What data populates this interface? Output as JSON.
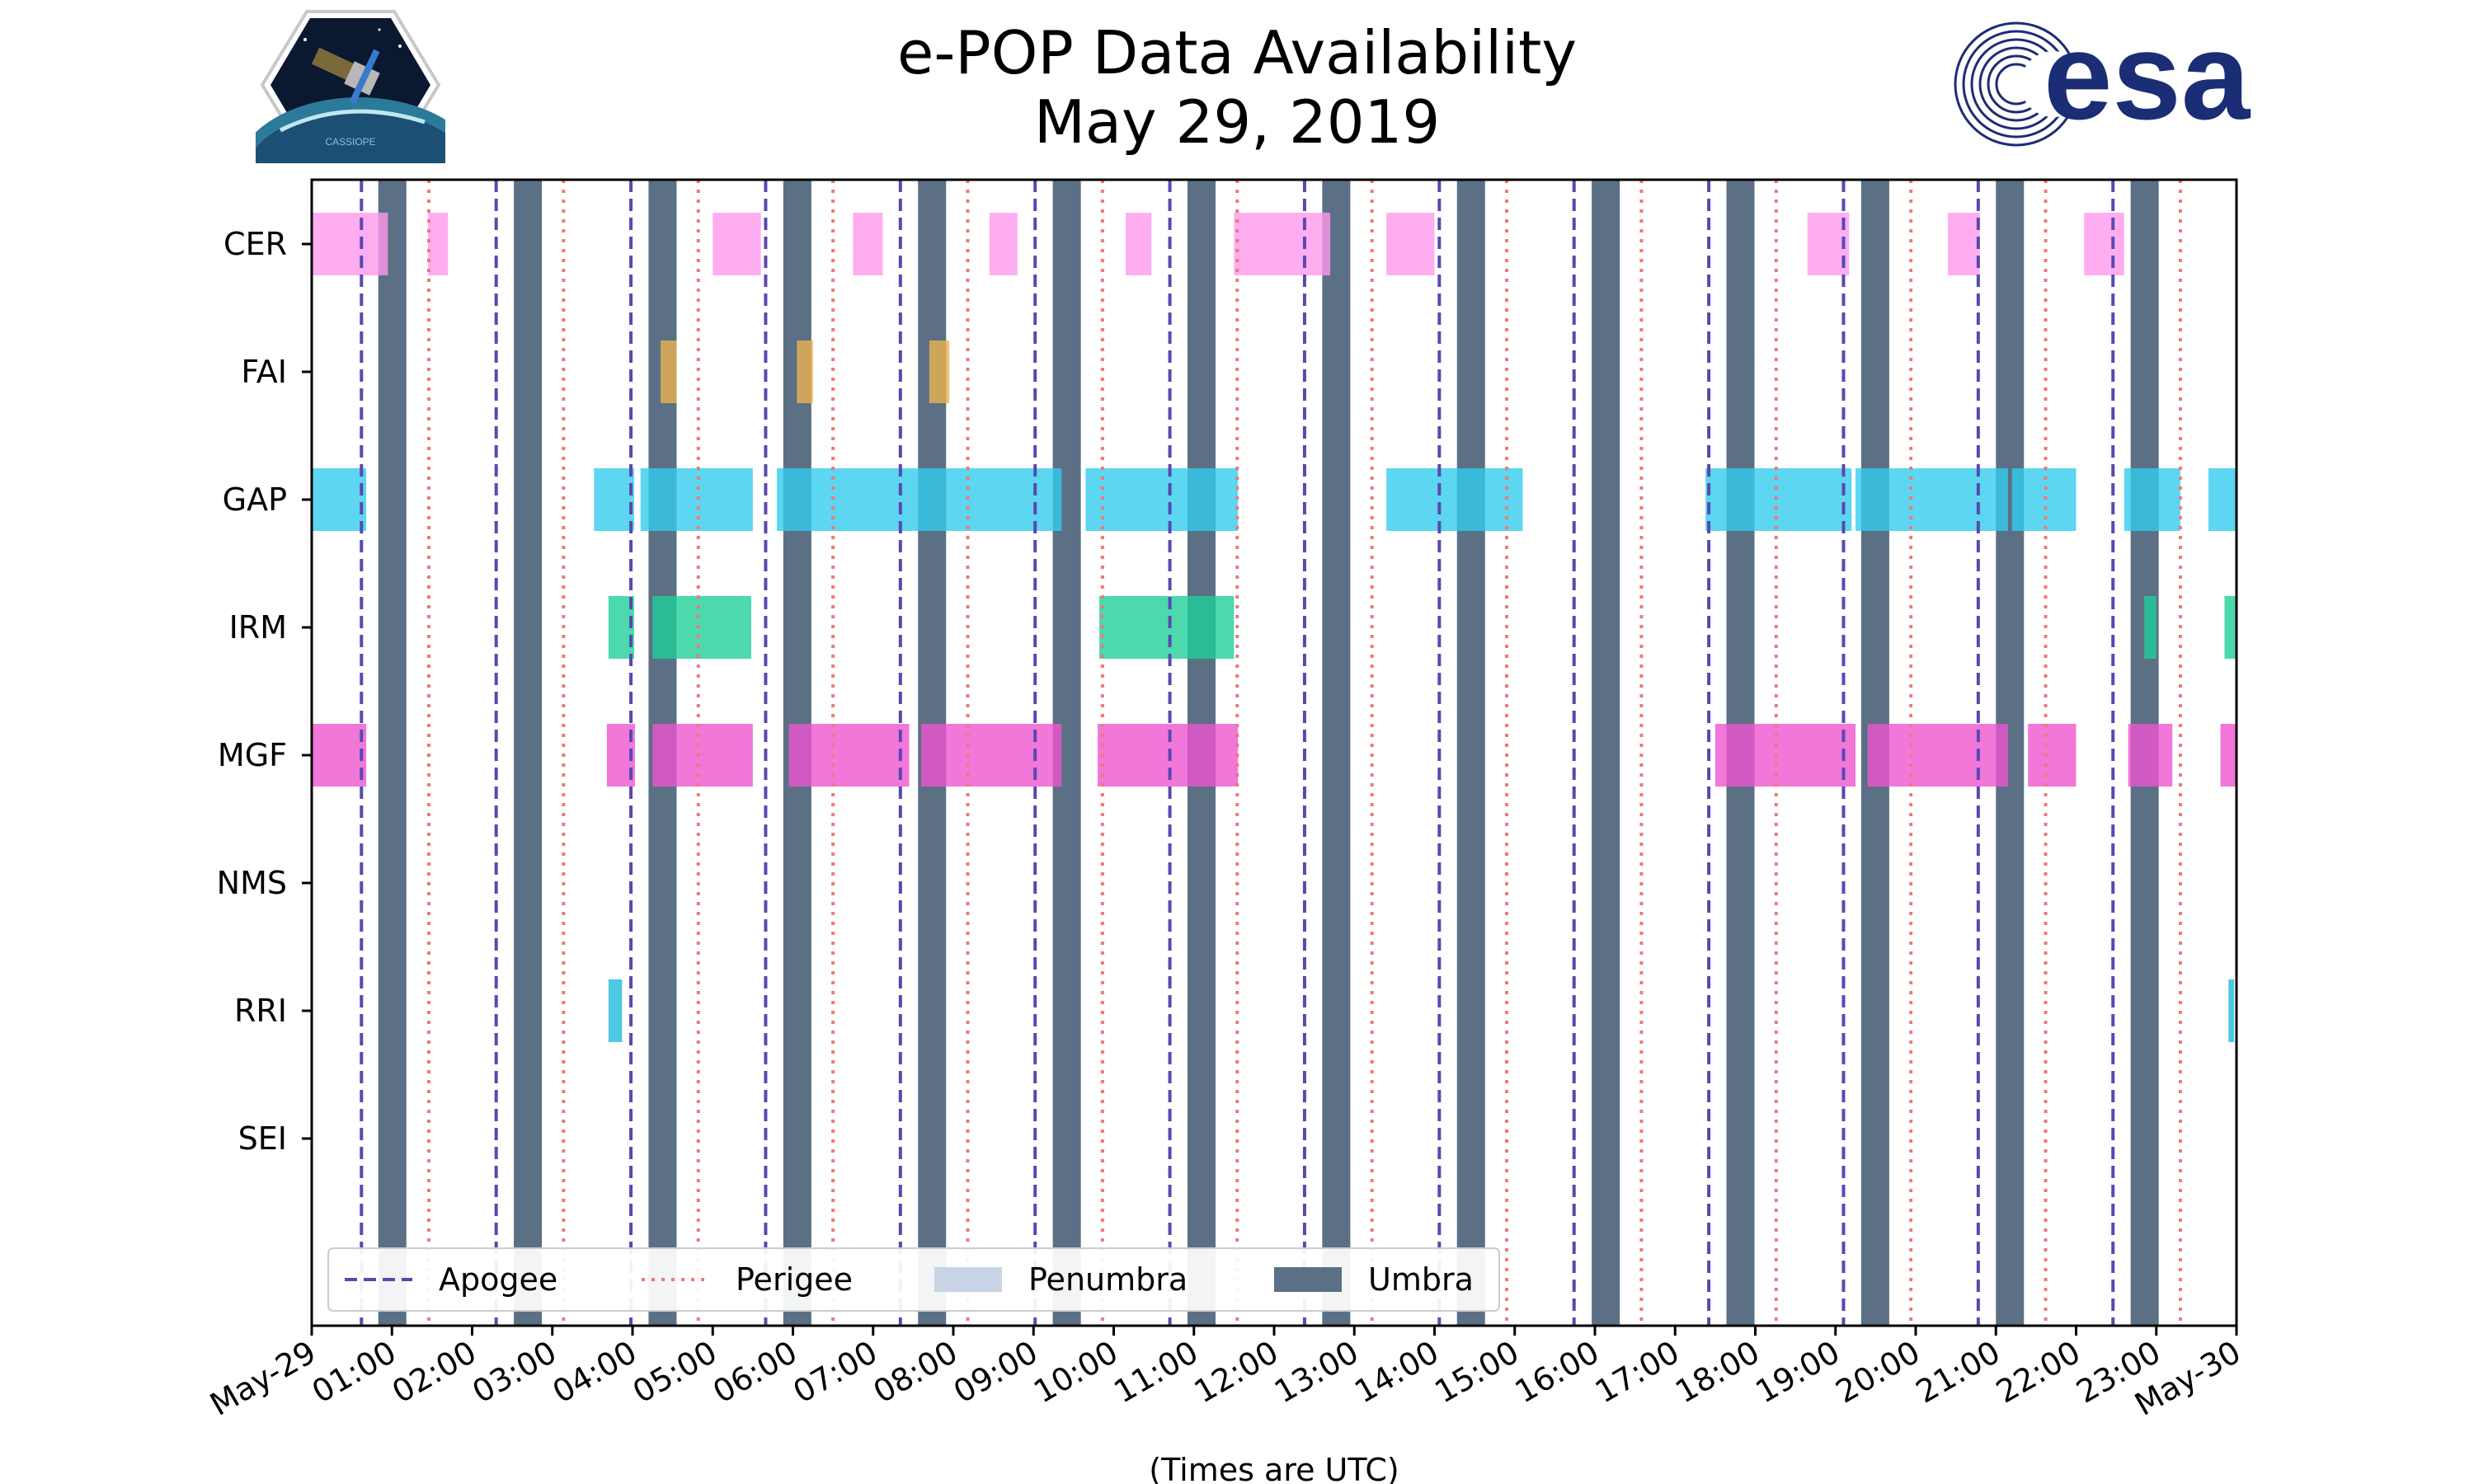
{
  "header": {
    "title_line1": "e-POP Data Availability",
    "title_line2": "May 29, 2019"
  },
  "logos": {
    "left": {
      "icon": "cassiope-mission-patch-icon",
      "text": "CASSIOPE"
    },
    "right": {
      "icon": "esa-logo-icon",
      "text": "esa"
    }
  },
  "colors": {
    "CER": "#ff99ee",
    "FAI": "#eab450",
    "GAP": "#33ccee",
    "IRM": "#1fcf9a",
    "MGF": "#ee55cf",
    "RRI": "#22bbdd",
    "apogee": "#5a48b0",
    "perigee": "#f07878",
    "penumbra": "#c8d4e6",
    "umbra": "#5b7085"
  },
  "chart_data": {
    "type": "timeline",
    "title": "e-POP Data Availability\nMay 29, 2019",
    "xlabel": "(Times are UTC)",
    "xlim": [
      0,
      24
    ],
    "x_unit": "hours UTC",
    "xticks": [
      {
        "value": 0,
        "label": "May-29"
      },
      {
        "value": 1,
        "label": "01:00"
      },
      {
        "value": 2,
        "label": "02:00"
      },
      {
        "value": 3,
        "label": "03:00"
      },
      {
        "value": 4,
        "label": "04:00"
      },
      {
        "value": 5,
        "label": "05:00"
      },
      {
        "value": 6,
        "label": "06:00"
      },
      {
        "value": 7,
        "label": "07:00"
      },
      {
        "value": 8,
        "label": "08:00"
      },
      {
        "value": 9,
        "label": "09:00"
      },
      {
        "value": 10,
        "label": "10:00"
      },
      {
        "value": 11,
        "label": "11:00"
      },
      {
        "value": 12,
        "label": "12:00"
      },
      {
        "value": 13,
        "label": "13:00"
      },
      {
        "value": 14,
        "label": "14:00"
      },
      {
        "value": 15,
        "label": "15:00"
      },
      {
        "value": 16,
        "label": "16:00"
      },
      {
        "value": 17,
        "label": "17:00"
      },
      {
        "value": 18,
        "label": "18:00"
      },
      {
        "value": 19,
        "label": "19:00"
      },
      {
        "value": 20,
        "label": "20:00"
      },
      {
        "value": 21,
        "label": "21:00"
      },
      {
        "value": 22,
        "label": "22:00"
      },
      {
        "value": 23,
        "label": "23:00"
      },
      {
        "value": 24,
        "label": "May-30"
      }
    ],
    "instruments": [
      "CER",
      "FAI",
      "GAP",
      "IRM",
      "MGF",
      "NMS",
      "RRI",
      "SEI"
    ],
    "apogee": [
      0.62,
      2.3,
      3.98,
      5.66,
      7.34,
      9.02,
      10.7,
      12.38,
      14.06,
      15.74,
      17.42,
      19.1,
      20.78,
      22.46
    ],
    "perigee": [
      1.46,
      3.14,
      4.82,
      6.5,
      8.18,
      9.86,
      11.54,
      13.22,
      14.9,
      16.58,
      18.26,
      19.94,
      21.62,
      23.3
    ],
    "penumbra": [],
    "umbra": [
      [
        0.83,
        1.18
      ],
      [
        2.52,
        2.87
      ],
      [
        4.2,
        4.55
      ],
      [
        5.88,
        6.23
      ],
      [
        7.56,
        7.91
      ],
      [
        9.24,
        9.59
      ],
      [
        10.92,
        11.27
      ],
      [
        12.6,
        12.95
      ],
      [
        14.28,
        14.63
      ],
      [
        15.96,
        16.31
      ],
      [
        17.64,
        17.99
      ],
      [
        19.32,
        19.67
      ],
      [
        21.0,
        21.35
      ],
      [
        22.68,
        23.03
      ]
    ],
    "series": [
      {
        "name": "CER",
        "intervals": [
          [
            0,
            0.95
          ],
          [
            1.45,
            1.7
          ],
          [
            5.0,
            5.6
          ],
          [
            6.75,
            7.12
          ],
          [
            8.45,
            8.8
          ],
          [
            10.15,
            10.47
          ],
          [
            11.5,
            12.7
          ],
          [
            13.4,
            14.0
          ],
          [
            18.65,
            19.17
          ],
          [
            20.4,
            20.8
          ],
          [
            22.1,
            22.6
          ]
        ]
      },
      {
        "name": "FAI",
        "intervals": [
          [
            4.35,
            4.55
          ],
          [
            6.05,
            6.25
          ],
          [
            7.7,
            7.95
          ]
        ]
      },
      {
        "name": "GAP",
        "intervals": [
          [
            0,
            0.68
          ],
          [
            3.52,
            4.02
          ],
          [
            4.1,
            5.5
          ],
          [
            5.8,
            7.4
          ],
          [
            7.4,
            9.35
          ],
          [
            9.65,
            11.55
          ],
          [
            13.4,
            15.1
          ],
          [
            17.38,
            19.2
          ],
          [
            19.25,
            21.15
          ],
          [
            21.2,
            22.0
          ],
          [
            22.6,
            23.3
          ],
          [
            23.65,
            24.0
          ]
        ]
      },
      {
        "name": "IRM",
        "intervals": [
          [
            3.7,
            4.02
          ],
          [
            4.25,
            5.48
          ],
          [
            9.82,
            11.5
          ],
          [
            22.85,
            23.0
          ],
          [
            23.85,
            24.0
          ]
        ]
      },
      {
        "name": "MGF",
        "intervals": [
          [
            0,
            0.68
          ],
          [
            3.68,
            4.03
          ],
          [
            4.25,
            5.5
          ],
          [
            5.95,
            7.45
          ],
          [
            7.6,
            9.35
          ],
          [
            9.8,
            11.55
          ],
          [
            17.5,
            19.25
          ],
          [
            19.4,
            21.15
          ],
          [
            21.4,
            22.0
          ],
          [
            22.65,
            23.2
          ],
          [
            23.8,
            24.0
          ]
        ]
      },
      {
        "name": "NMS",
        "intervals": []
      },
      {
        "name": "RRI",
        "intervals": [
          [
            3.7,
            3.87
          ],
          [
            23.9,
            23.97
          ]
        ]
      },
      {
        "name": "SEI",
        "intervals": []
      }
    ],
    "legend": {
      "position": "lower-left",
      "entries": [
        {
          "label": "Apogee",
          "style": "dashed-line"
        },
        {
          "label": "Perigee",
          "style": "dotted-line"
        },
        {
          "label": "Penumbra",
          "style": "patch"
        },
        {
          "label": "Umbra",
          "style": "patch"
        }
      ]
    }
  }
}
